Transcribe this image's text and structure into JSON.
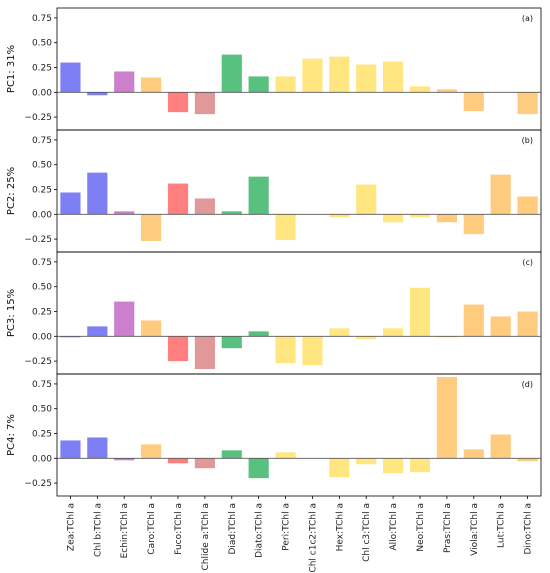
{
  "chart_data": {
    "type": "bar",
    "categories": [
      "Zea:TChl a",
      "Chl b:TChl a",
      "Echin:TChl a",
      "Caro:TChl a",
      "Fuco:TChl a",
      "Chlide a:TChl a",
      "Diad:TChl a",
      "Diato:TChl a",
      "Peri:TChl a",
      "Chl c1c2:TChl a",
      "Hex:TChl a",
      "Chl c3:TChl a",
      "Allo:TChl a",
      "Neo:TChl a",
      "Pras:TChl a",
      "Viola:TChl a",
      "Lut:TChl a",
      "Dino:TChl a"
    ],
    "bar_colors": [
      "#7f7ff5",
      "#7f7ff5",
      "#cc7fcc",
      "#ffcc7f",
      "#ff7f7f",
      "#e09898",
      "#59c17f",
      "#59c17f",
      "#ffe680",
      "#ffe680",
      "#ffe680",
      "#ffe680",
      "#ffe680",
      "#ffe680",
      "#ffcc7f",
      "#ffcc7f",
      "#ffcc7f",
      "#ffcc7f"
    ],
    "ylim": [
      -0.38,
      0.85
    ],
    "yticks": [
      "0.75",
      "0.50",
      "0.25",
      "0.00",
      "−0.25"
    ],
    "ytick_values": [
      0.75,
      0.5,
      0.25,
      0.0,
      -0.25
    ],
    "panels": [
      {
        "tag": "(a)",
        "ylabel": "PC1: 31%",
        "values": [
          0.3,
          -0.03,
          0.21,
          0.15,
          -0.2,
          -0.22,
          0.38,
          0.16,
          0.16,
          0.34,
          0.36,
          0.28,
          0.31,
          0.06,
          0.03,
          -0.19,
          0.0,
          -0.22
        ]
      },
      {
        "tag": "(b)",
        "ylabel": "PC2: 25%",
        "values": [
          0.22,
          0.42,
          0.03,
          -0.27,
          0.31,
          0.16,
          0.03,
          0.38,
          -0.26,
          0.0,
          -0.03,
          0.3,
          -0.08,
          -0.03,
          -0.08,
          -0.2,
          0.4,
          0.18
        ]
      },
      {
        "tag": "(c)",
        "ylabel": "PC3: 15%",
        "values": [
          -0.01,
          0.1,
          0.35,
          0.16,
          -0.25,
          -0.33,
          -0.12,
          0.05,
          -0.27,
          -0.29,
          0.08,
          -0.03,
          0.08,
          0.49,
          -0.01,
          0.32,
          0.2,
          0.25
        ]
      },
      {
        "tag": "(d)",
        "ylabel": "PC4: 7%",
        "values": [
          0.18,
          0.21,
          -0.02,
          0.14,
          -0.05,
          -0.1,
          0.08,
          -0.2,
          0.06,
          0.0,
          -0.19,
          -0.06,
          -0.15,
          -0.14,
          0.82,
          0.09,
          0.24,
          -0.03
        ]
      }
    ]
  }
}
